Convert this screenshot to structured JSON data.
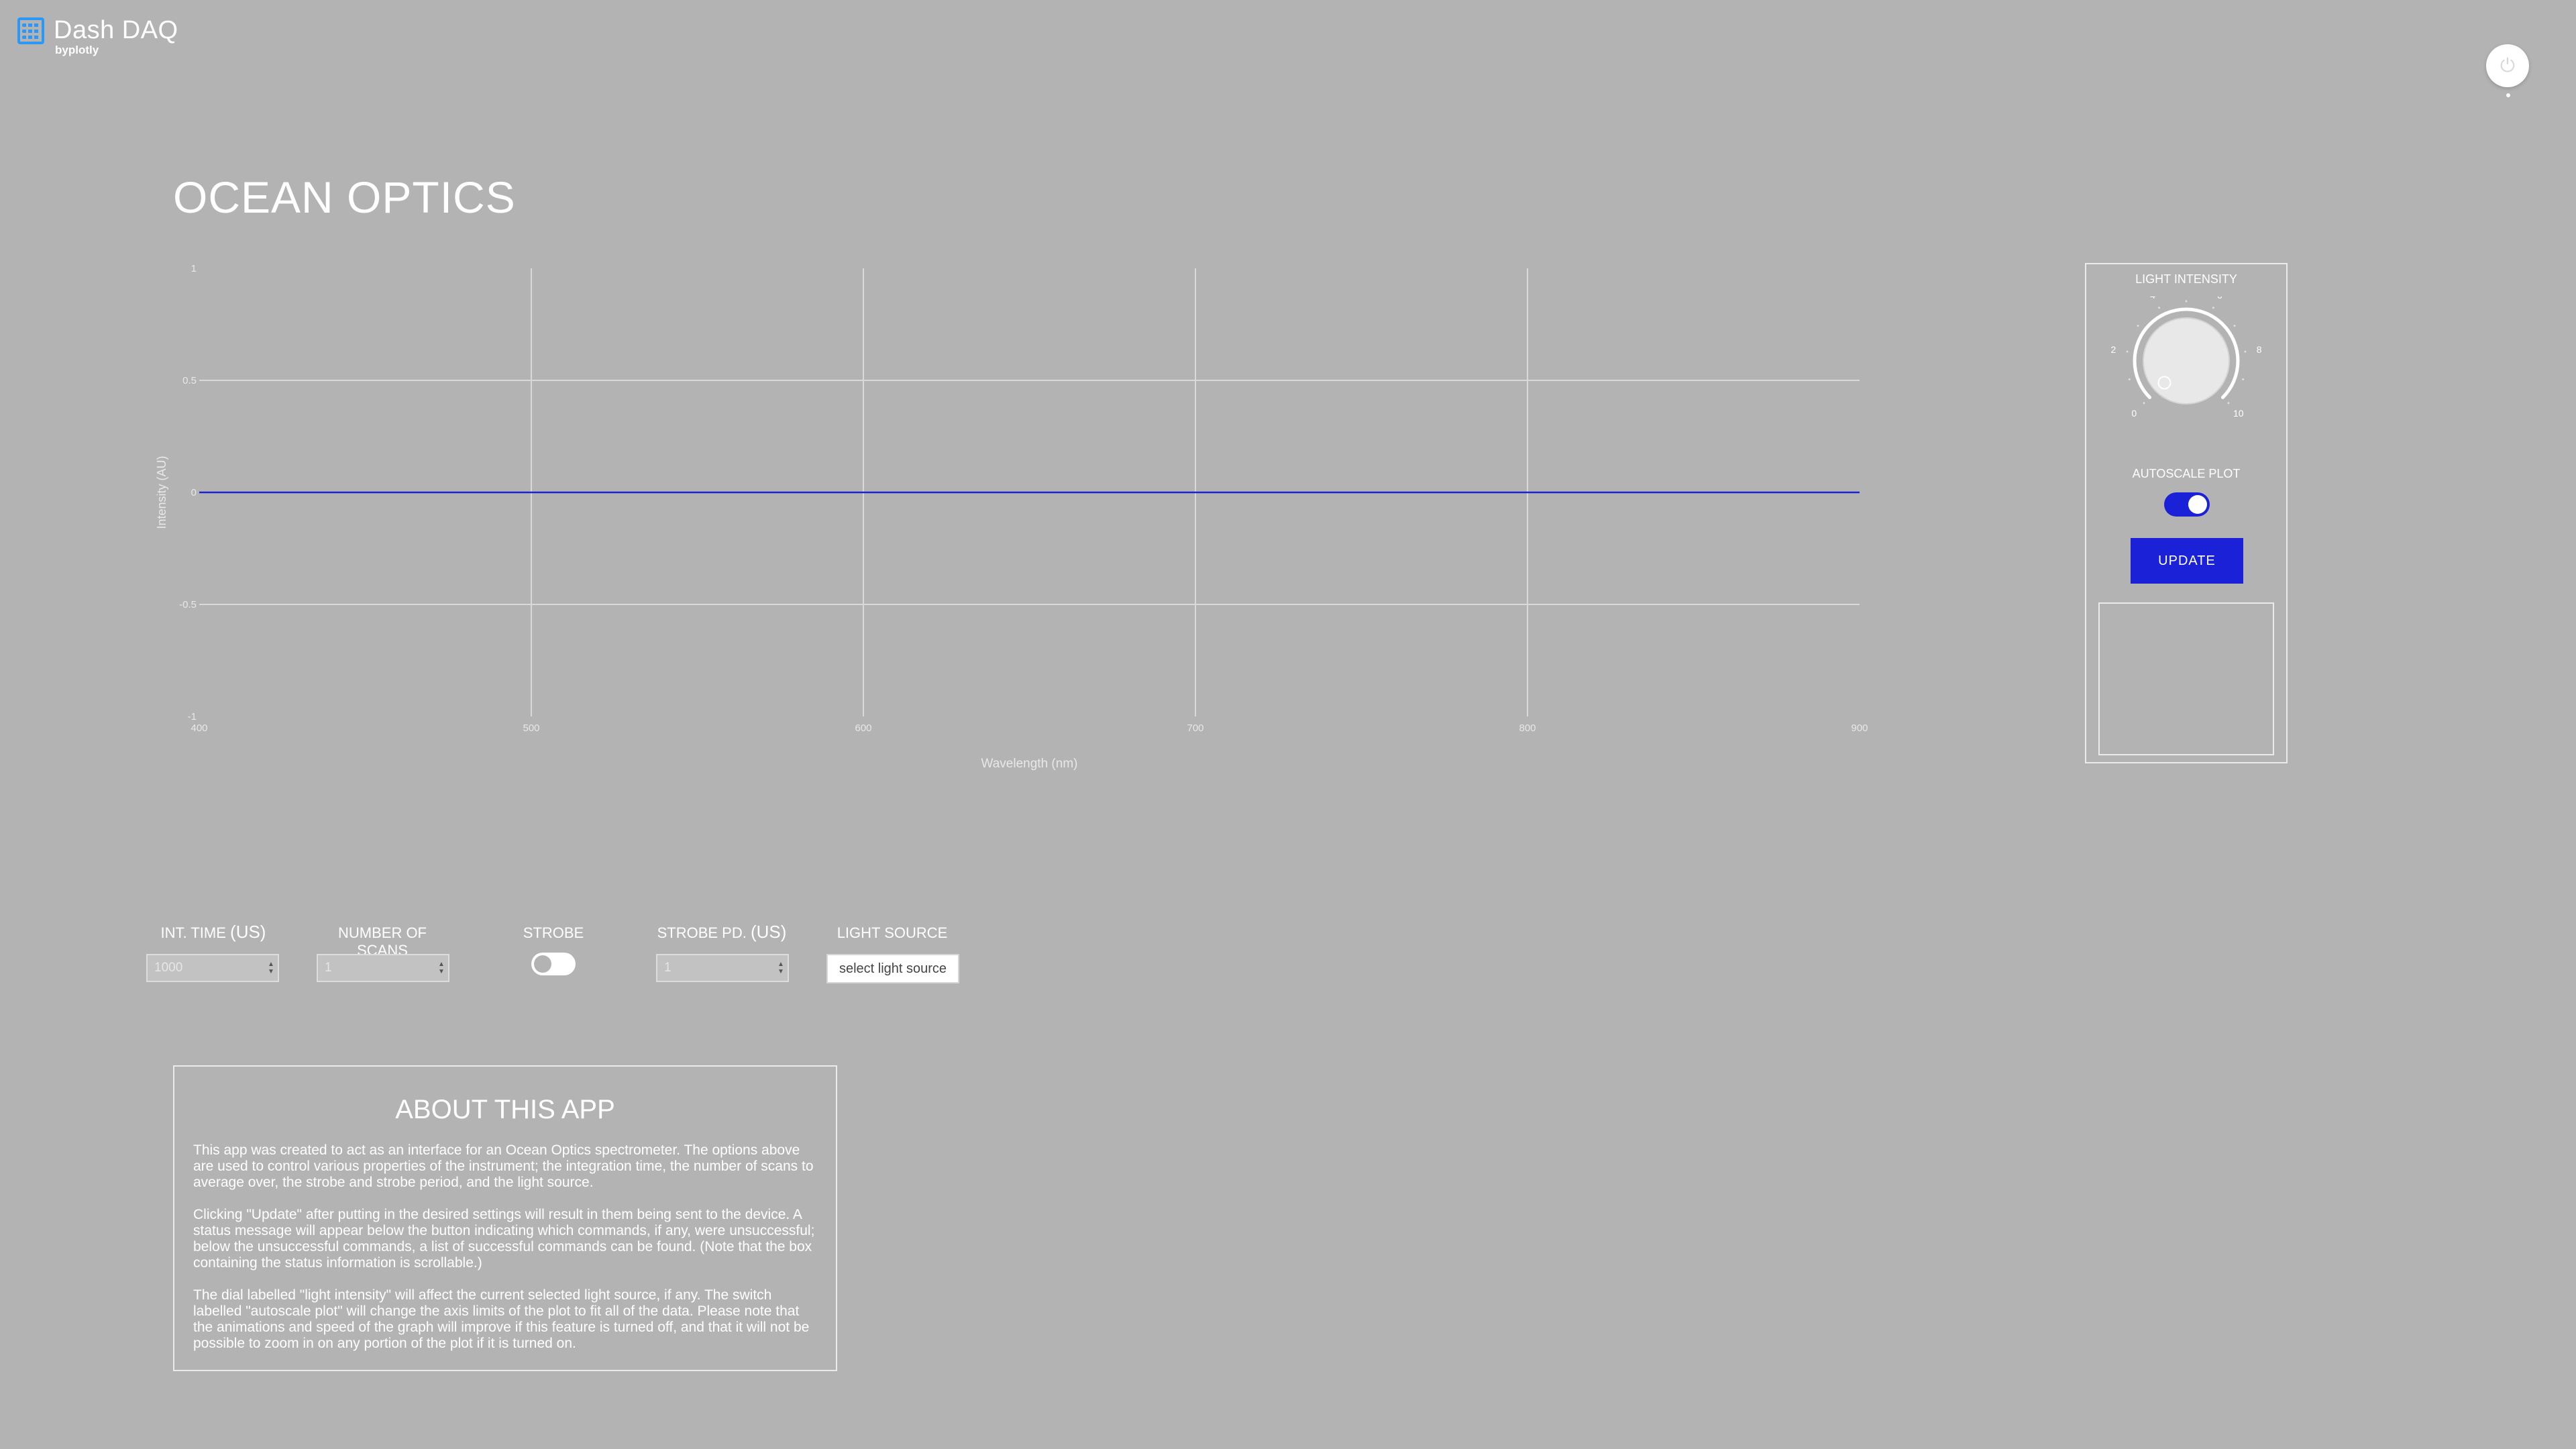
{
  "logo": {
    "title": "Dash DAQ",
    "subtitle": "byplotly"
  },
  "power": {
    "icon": "power-icon"
  },
  "page_title": "OCEAN OPTICS",
  "chart_data": {
    "type": "line",
    "title": "",
    "xlabel": "Wavelength (nm)",
    "ylabel": "Intensity (AU)",
    "xlim": [
      400,
      900
    ],
    "ylim": [
      -1,
      1
    ],
    "x_ticks": [
      "400",
      "500",
      "600",
      "700",
      "800",
      "900"
    ],
    "y_ticks": [
      "-1",
      "-0.5",
      "0",
      "0.5",
      "1"
    ],
    "grid": true,
    "series": [
      {
        "x": [
          400,
          900
        ],
        "values": [
          0,
          0
        ],
        "color": "#1a21d6"
      }
    ]
  },
  "panel": {
    "light_intensity_label": "LIGHT INTENSITY",
    "knob": {
      "min": 0,
      "max": 10,
      "value": 0,
      "tick_labels": [
        "0",
        "2",
        "4",
        "6",
        "8",
        "10"
      ]
    },
    "autoscale_label": "AUTOSCALE PLOT",
    "autoscale_on": true,
    "update_label": "UPDATE",
    "status_text": ""
  },
  "controls": {
    "int_time": {
      "label": "INT. TIME",
      "unit": "(US)",
      "value": "1000"
    },
    "num_scans": {
      "label": "NUMBER OF SCANS",
      "value": "1"
    },
    "strobe": {
      "label": "STROBE",
      "on": false
    },
    "strobe_pd": {
      "label": "STROBE PD.",
      "unit": "(US)",
      "value": "1"
    },
    "light_source": {
      "label": "LIGHT SOURCE",
      "placeholder": "select light source"
    }
  },
  "about": {
    "title": "ABOUT THIS APP",
    "paragraphs": [
      "This app was created to act as an interface for an Ocean Optics spectrometer. The options above are used to control various properties of the instrument; the integration time, the number of scans to average over, the strobe and strobe period, and the light source.",
      "Clicking \"Update\" after putting in the desired settings will result in them being sent to the device. A status message will appear below the button indicating which commands, if any, were unsuccessful; below the unsuccessful commands, a list of successful commands can be found. (Note that the box containing the status information is scrollable.)",
      "The dial labelled \"light intensity\" will affect the current selected light source, if any. The switch labelled \"autoscale plot\" will change the axis limits of the plot to fit all of the data. Please note that the animations and speed of the graph will improve if this feature is turned off, and that it will not be possible to zoom in on any portion of the plot if it is turned on."
    ]
  },
  "colors": {
    "background": "#b3b3b3",
    "accent": "#1a21d6",
    "logo": "#2b98f5"
  }
}
